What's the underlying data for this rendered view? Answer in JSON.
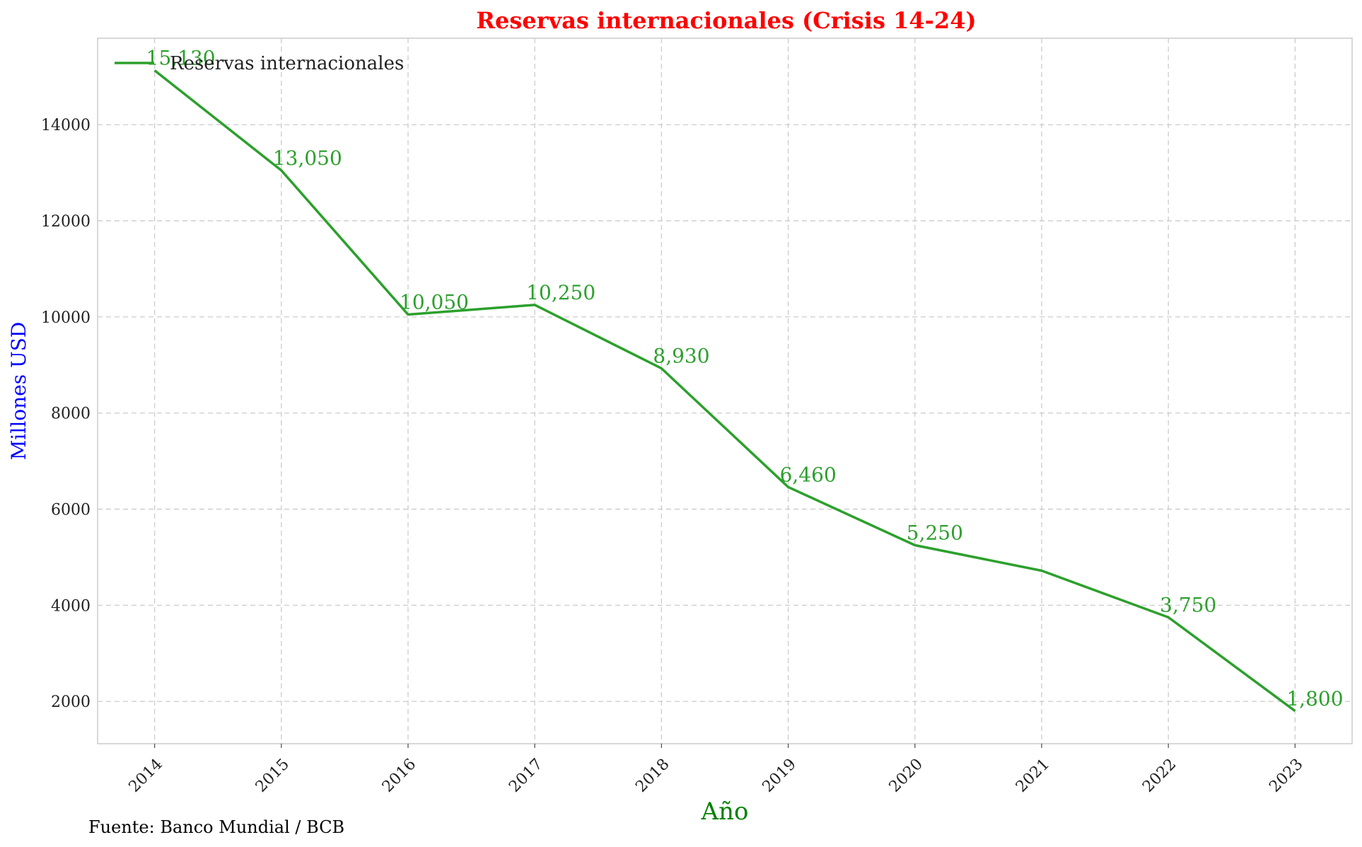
{
  "chart_data": {
    "type": "line",
    "title": "Reservas internacionales (Crisis 14-24)",
    "xlabel": "Año",
    "ylabel": "Millones USD",
    "x": [
      2014,
      2015,
      2016,
      2017,
      2018,
      2019,
      2020,
      2021,
      2022,
      2023
    ],
    "series": [
      {
        "name": "Reservas internacionales",
        "values": [
          15130,
          13050,
          10050,
          10250,
          8930,
          6460,
          5250,
          4720,
          3750,
          1800
        ],
        "color": "#2ca02c"
      }
    ],
    "data_labels": [
      {
        "index": 0,
        "text": "15,130"
      },
      {
        "index": 1,
        "text": "13,050"
      },
      {
        "index": 2,
        "text": "10,050"
      },
      {
        "index": 3,
        "text": "10,250"
      },
      {
        "index": 4,
        "text": "8,930"
      },
      {
        "index": 5,
        "text": "6,460"
      },
      {
        "index": 6,
        "text": "5,250"
      },
      {
        "index": 8,
        "text": "3,750"
      },
      {
        "index": 9,
        "text": "1,800"
      }
    ],
    "yticks": [
      2000,
      4000,
      6000,
      8000,
      10000,
      12000,
      14000
    ],
    "ylim": [
      1120,
      15800
    ],
    "xlim": [
      2013.55,
      2023.45
    ],
    "grid": true,
    "legend_position": "top-left",
    "colors": {
      "title": "#ff0000",
      "xlabel": "#008000",
      "ylabel": "#0000ff",
      "line": "#2ca02c",
      "grid": "#cccccc",
      "axes": "#cccccc"
    }
  },
  "footer": {
    "source": "Fuente: Banco Mundial / BCB"
  }
}
